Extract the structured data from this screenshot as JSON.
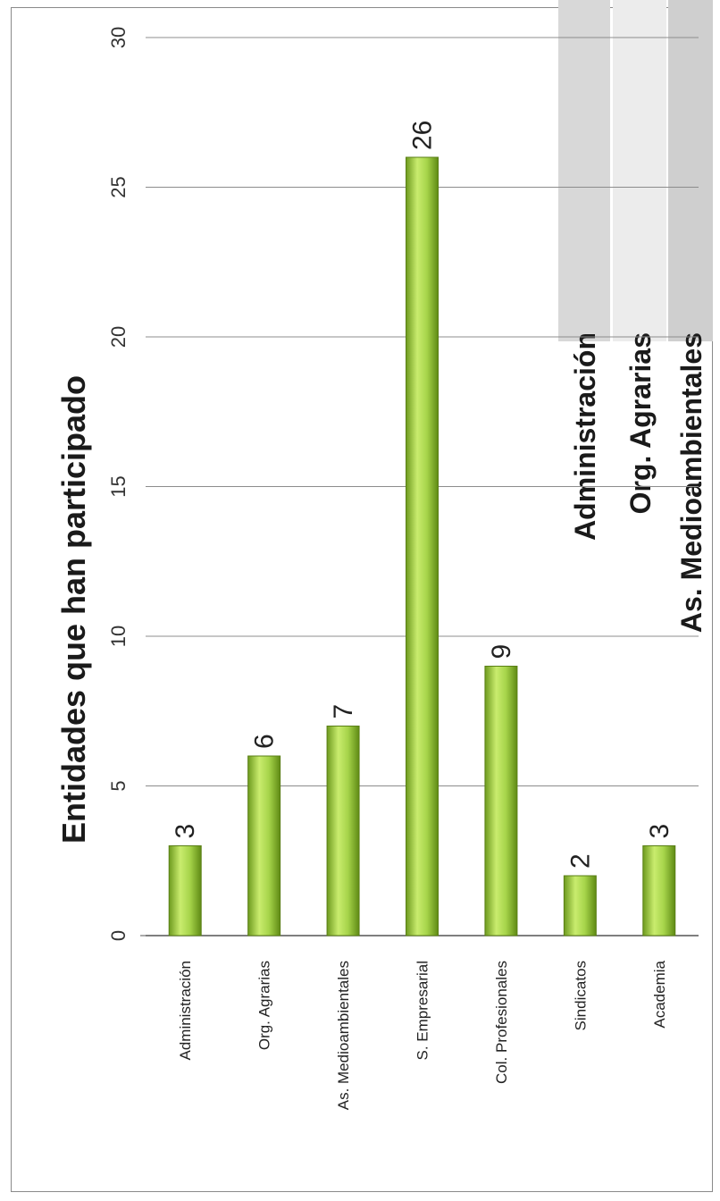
{
  "chart_data": {
    "type": "bar",
    "title": "Entidades que han participado",
    "categories": [
      "Administración",
      "Org. Agrarias",
      "As. Medioambientales",
      "S. Empresarial",
      "Col. Profesionales",
      "Sindicatos",
      "Academia"
    ],
    "values": [
      3,
      6,
      7,
      26,
      9,
      2,
      3
    ],
    "ylim": [
      0,
      30
    ],
    "yticks": [
      0,
      5,
      10,
      15,
      20,
      25,
      30
    ],
    "grid": true,
    "orientation": "rotated-90",
    "bar_color": "#9ccc3c"
  },
  "side_table": {
    "rows": [
      "Administración",
      "Org. Agrarias",
      "As. Medioambientales"
    ],
    "colors": [
      "#d8d8d8",
      "#ececec",
      "#cfcfcf"
    ]
  }
}
